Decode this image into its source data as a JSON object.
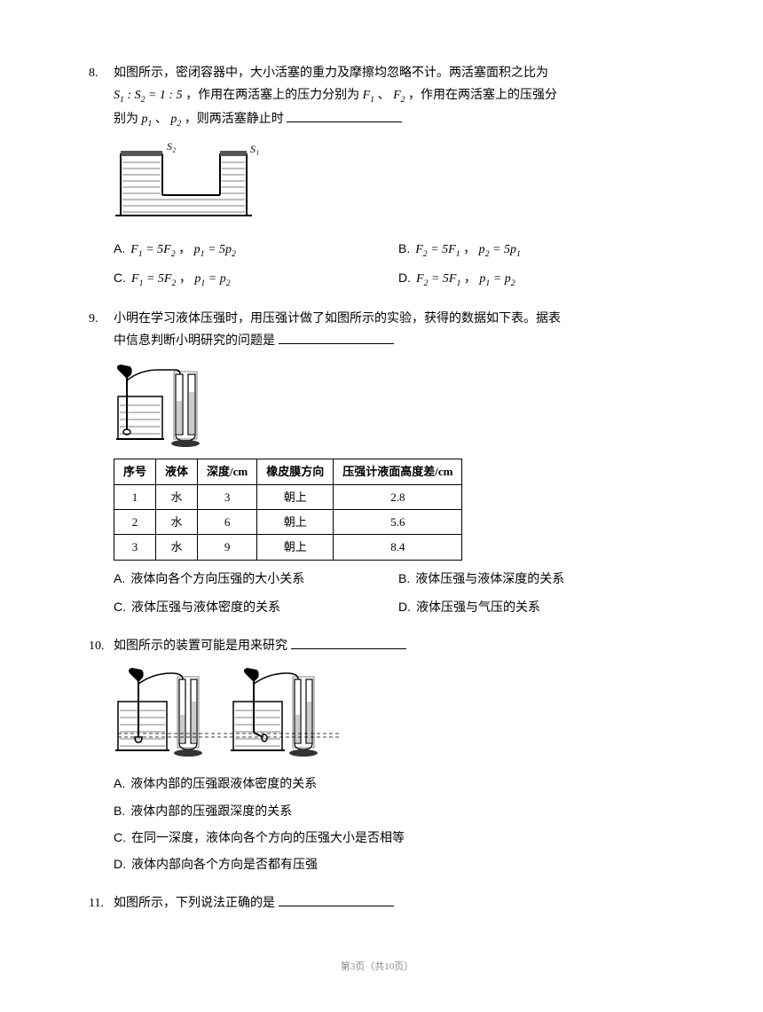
{
  "q8": {
    "number": "8.",
    "text_line1": "如图所示，密闭容器中，大小活塞的重力及摩擦均忽略不计。两活塞面积之比为",
    "text_line2_pre": " ",
    "text_line2_post": " ，作用在两活塞上的压力分别为 ",
    "text_line2_mid": "、",
    "text_line2_end": "，作用在两活塞上的压强分",
    "text_line3_pre": "别为 ",
    "text_line3_mid": "、",
    "text_line3_end": "，则两活塞静止时",
    "S1": "S",
    "S2": "S",
    "ratio": " = 1 : 5",
    "F1": "F",
    "F2": "F",
    "p1": "p",
    "p2": "p",
    "figure_label_S2": "S₂",
    "figure_label_S1": "S₁",
    "options": {
      "A": "F₁ = 5F₂ ， p₁ = 5p₂",
      "B": "F₂ = 5F₁ ， p₂ = 5p₁",
      "C": "F₁ = 5F₂ ， p₁ = p₂",
      "D": "F₂ = 5F₁ ， p₁ = p₂"
    }
  },
  "q9": {
    "number": "9.",
    "text_line1": "小明在学习液体压强时，用压强计做了如图所示的实验，获得的数据如下表。据表",
    "text_line2": "中信息判断小明研究的问题是",
    "table": {
      "headers": [
        "序号",
        "液体",
        "深度/cm",
        "橡皮膜方向",
        "压强计液面高度差/cm"
      ],
      "rows": [
        [
          "1",
          "水",
          "3",
          "朝上",
          "2.8"
        ],
        [
          "2",
          "水",
          "6",
          "朝上",
          "5.6"
        ],
        [
          "3",
          "水",
          "9",
          "朝上",
          "8.4"
        ]
      ]
    },
    "options": {
      "A": "液体向各个方向压强的大小关系",
      "B": "液体压强与液体深度的关系",
      "C": "液体压强与液体密度的关系",
      "D": "液体压强与气压的关系"
    }
  },
  "q10": {
    "number": "10.",
    "text": "如图所示的装置可能是用来研究",
    "options": {
      "A": "液体内部的压强跟液体密度的关系",
      "B": "液体内部的压强跟深度的关系",
      "C": "在同一深度，液体向各个方向的压强大小是否相等",
      "D": "液体内部向各个方向是否都有压强"
    }
  },
  "q11": {
    "number": "11.",
    "text": "如图所示，下列说法正确的是"
  },
  "footer": "第3页（共10页）"
}
